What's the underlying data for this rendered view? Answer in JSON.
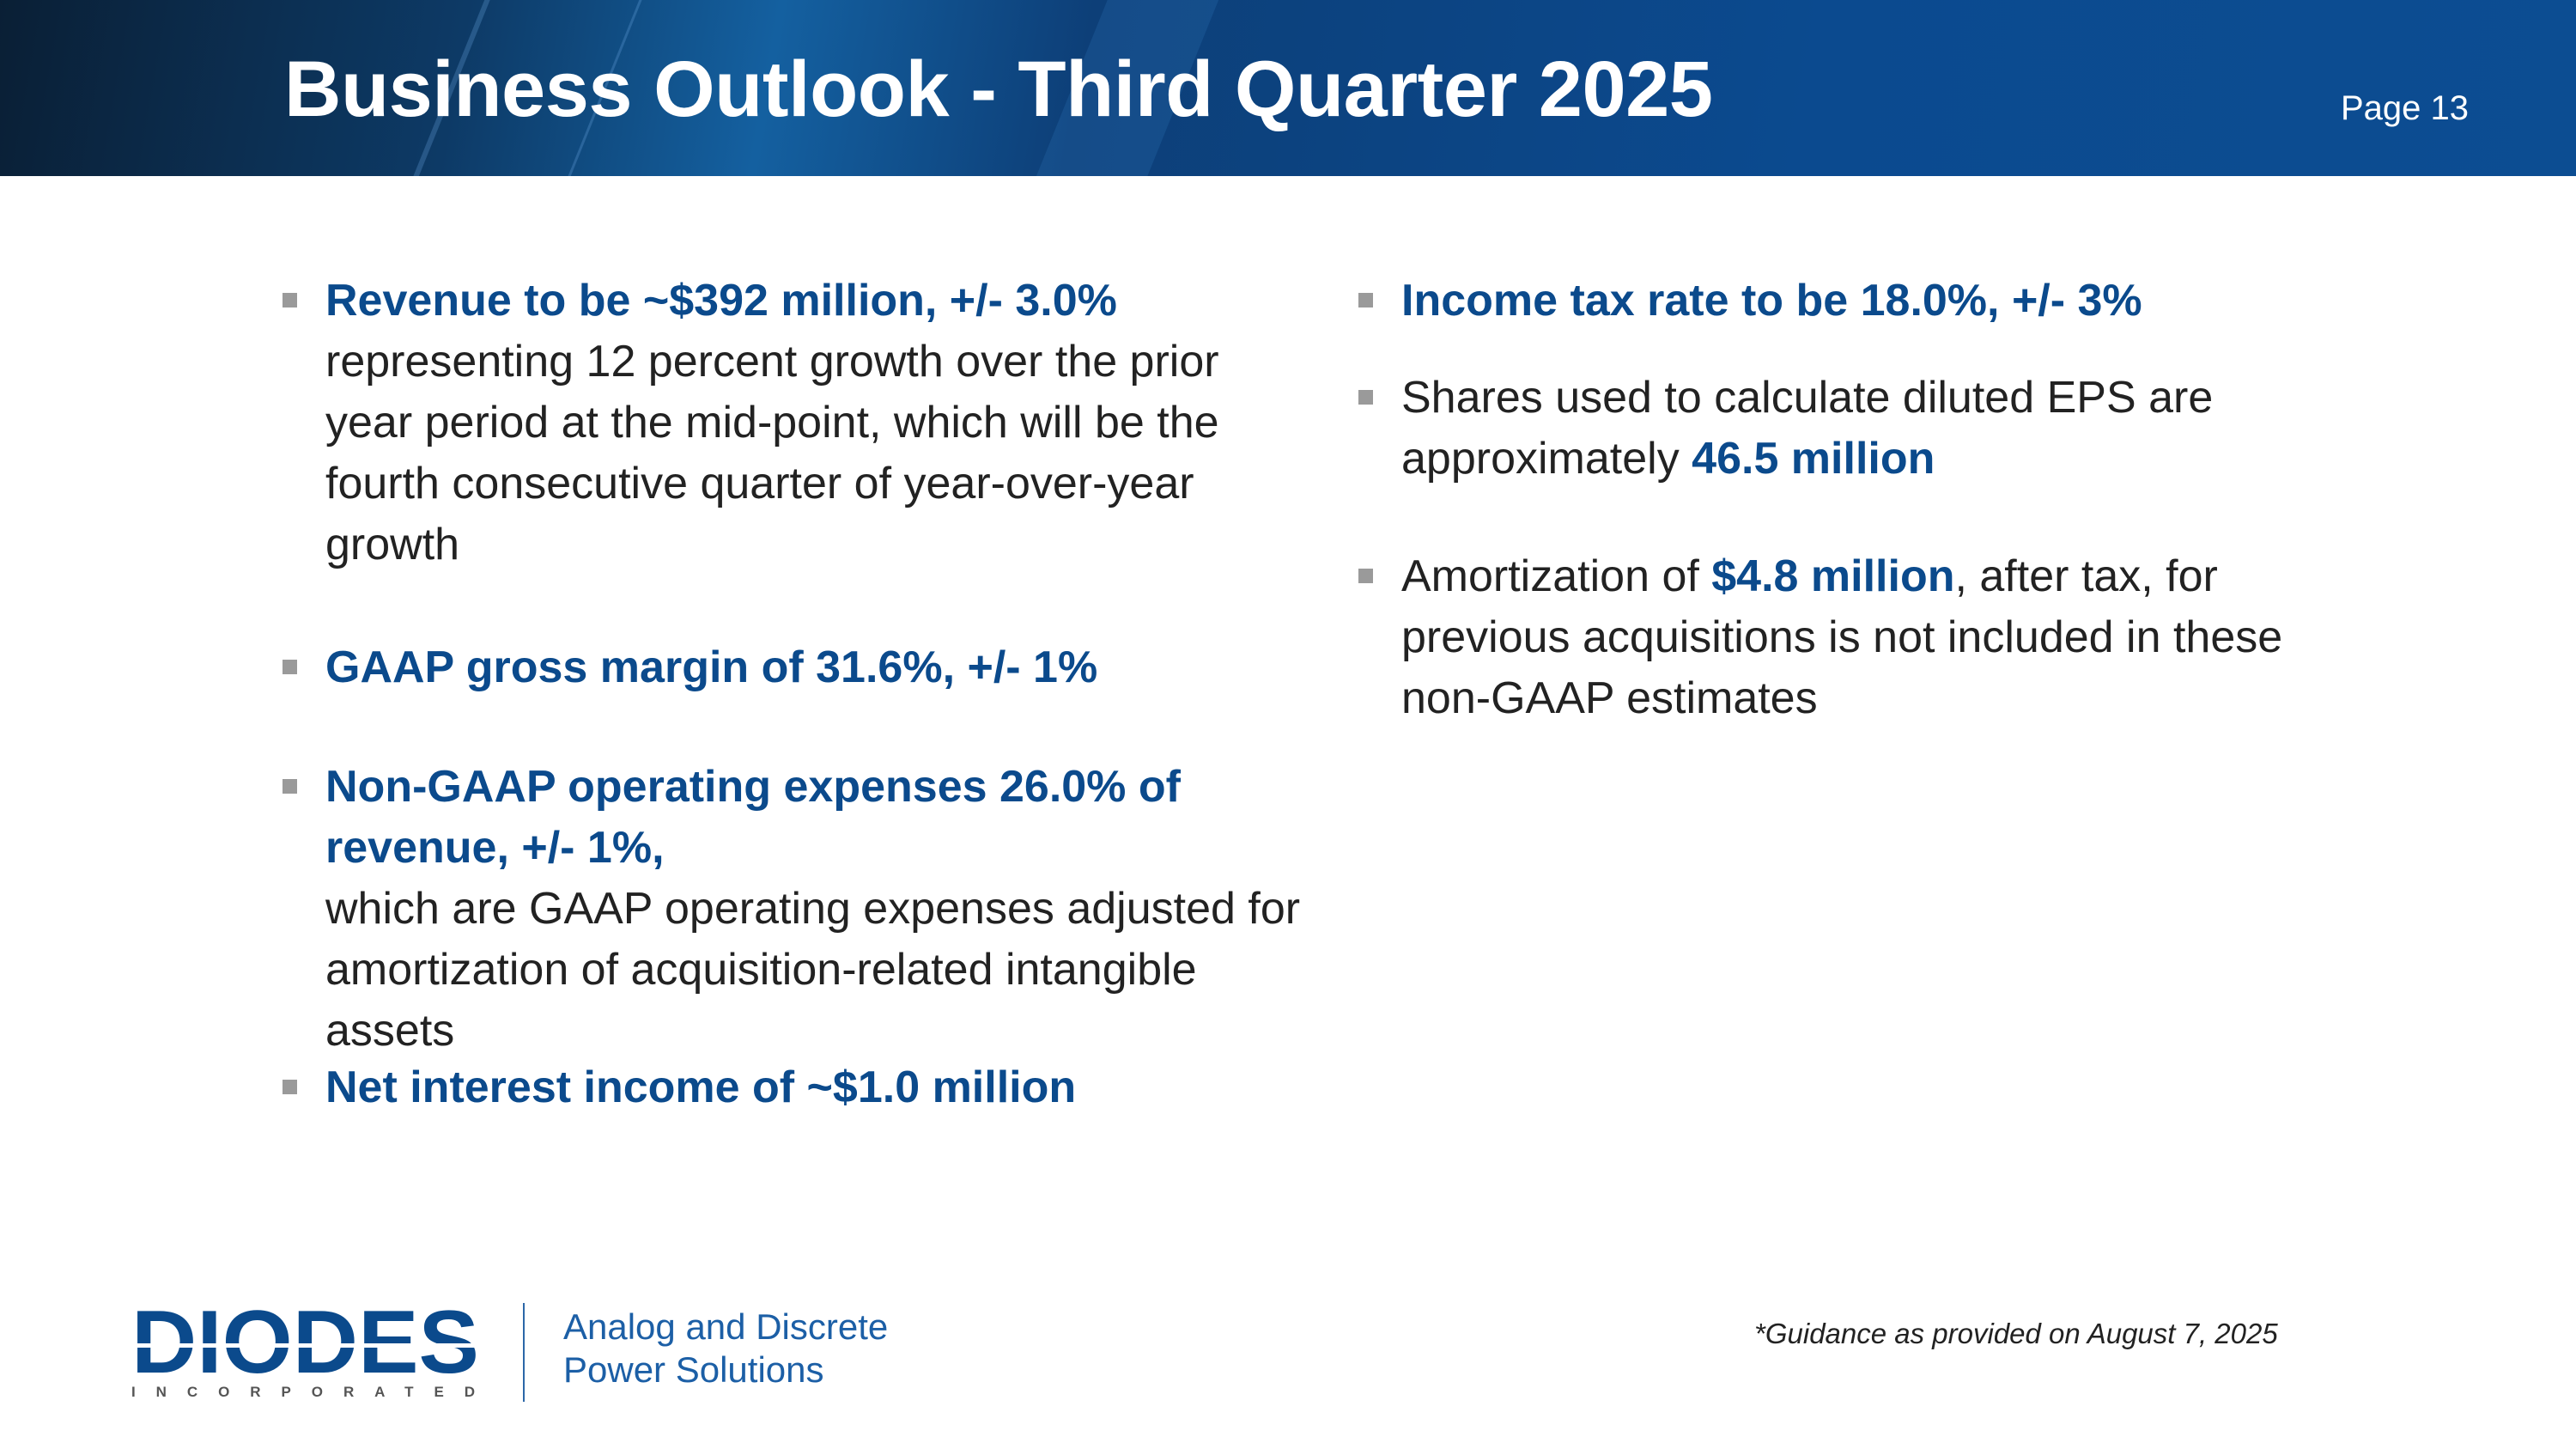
{
  "header": {
    "title": "Business Outlook - Third Quarter 2025",
    "page": "Page 13"
  },
  "left": [
    {
      "bold": "Revenue to be ~$392 million, +/- 3.0%",
      "text": "representing 12 percent growth over the prior year period at the mid-point, which will be the fourth consecutive quarter of year-over-year growth"
    },
    {
      "bold": "GAAP gross margin of 31.6%, +/- 1%"
    },
    {
      "bold": "Non-GAAP operating expenses 26.0% of revenue, +/- 1%,",
      "text": " which are GAAP operating expenses adjusted for amortization of acquisition-related intangible assets"
    },
    {
      "bold": "Net interest income of ~$1.0 million"
    }
  ],
  "right": [
    {
      "bold": "Income tax rate to be 18.0%, +/- 3%"
    },
    {
      "text": "Shares used to calculate diluted EPS are approximately ",
      "bold": "46.5 million"
    },
    {
      "pre": "Amortization of ",
      "bold": "$4.8 million",
      "text": ", after tax, for previous acquisitions is not included in these non-GAAP estimates"
    }
  ],
  "footer": {
    "logo": "DIODES",
    "logo_sub": "INCORPORATED",
    "tagline_1": "Analog and Discrete",
    "tagline_2": "Power Solutions",
    "footnote": "*Guidance as provided on August 7, 2025"
  },
  "colors": {
    "accent": "#0b4a8c",
    "header_bg": "#0c4d92",
    "bullet": "#9a9a9a"
  }
}
